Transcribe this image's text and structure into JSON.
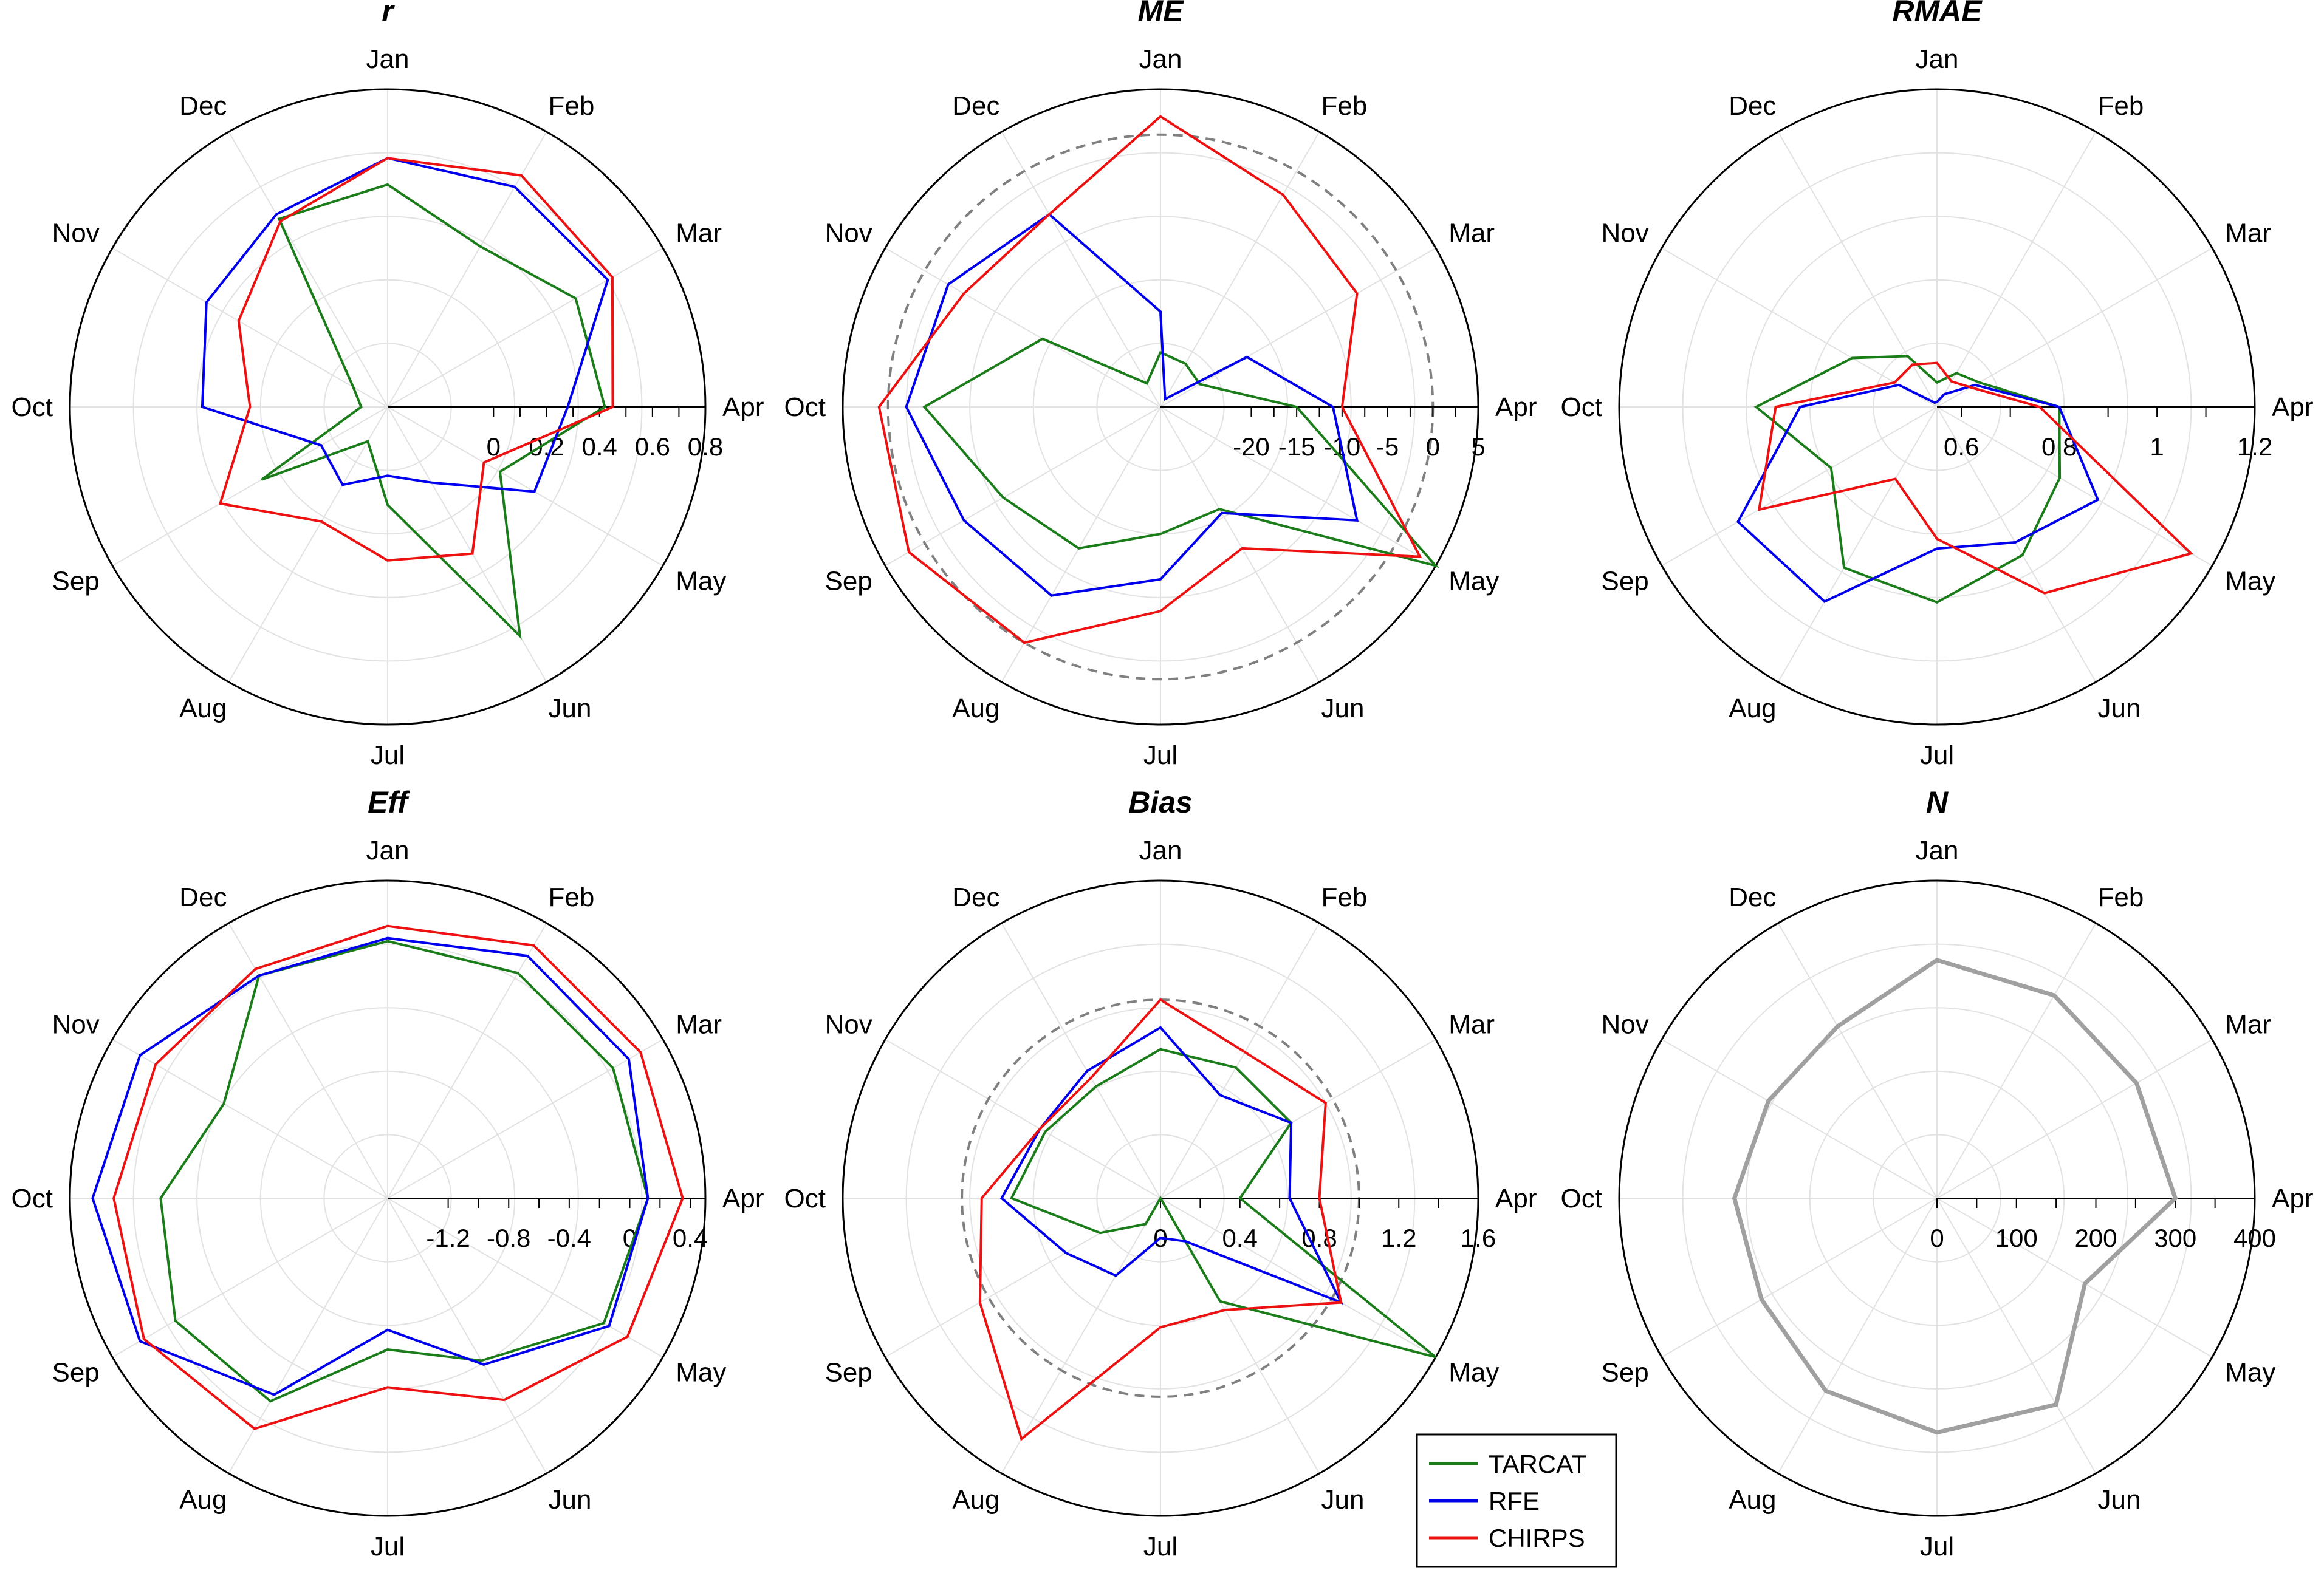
{
  "months": [
    "Jan",
    "Feb",
    "Mar",
    "Apr",
    "May",
    "Jun",
    "Jul",
    "Aug",
    "Sep",
    "Oct",
    "Nov",
    "Dec"
  ],
  "colors": {
    "TARCAT": "#1a7d1a",
    "RFE": "#0000ee",
    "CHIRPS": "#ee1111",
    "N": "#a0a0a0",
    "ref": "#808080"
  },
  "chart_data": [
    {
      "type": "radar",
      "title": "r",
      "rlim": [
        -0.4,
        0.8
      ],
      "ticks": [
        0,
        0.2,
        0.4,
        0.6,
        0.8
      ],
      "tick_labels": [
        "0",
        "0.2",
        "0.4",
        "0.6",
        "0.8"
      ],
      "series": [
        {
          "name": "TARCAT",
          "values": [
            0.44,
            0.3,
            0.42,
            0.42,
            0.09,
            0.6,
            -0.03,
            -0.25,
            0.15,
            -0.3,
            -0.25,
            0.42
          ]
        },
        {
          "name": "RFE",
          "values": [
            0.54,
            0.56,
            0.56,
            0.28,
            0.24,
            -0.07,
            -0.14,
            -0.06,
            -0.11,
            0.3,
            0.39,
            0.44
          ]
        },
        {
          "name": "CHIRPS",
          "values": [
            0.54,
            0.61,
            0.58,
            0.45,
            0.02,
            0.24,
            0.18,
            0.1,
            0.33,
            0.12,
            0.25,
            0.41
          ]
        }
      ]
    },
    {
      "type": "radar",
      "title": "ME",
      "rlim": [
        -30,
        5
      ],
      "ticks": [
        -20,
        -15,
        -10,
        -5,
        0,
        5
      ],
      "tick_labels": [
        "-20",
        "-15",
        "-10",
        "-5",
        "0",
        "5"
      ],
      "reference": 0,
      "series": [
        {
          "name": "TARCAT",
          "values": [
            -24.0,
            -24.5,
            -25.0,
            -15.0,
            5.0,
            -17.0,
            -16.0,
            -12.0,
            -10.0,
            -4.0,
            -15.0,
            -27.0
          ]
        },
        {
          "name": "RFE",
          "values": [
            -19.5,
            -29.0,
            -19.0,
            -11.0,
            -5.0,
            -16.5,
            -11.0,
            -6.0,
            -5.0,
            -2.0,
            -3.0,
            -5.5
          ]
        },
        {
          "name": "CHIRPS",
          "values": [
            2.0,
            -3.0,
            -5.0,
            -10.0,
            3.0,
            -12.0,
            -7.5,
            0.0,
            2.0,
            1.0,
            -5.0,
            -5.5
          ]
        }
      ]
    },
    {
      "type": "radar",
      "title": "RMAE",
      "rlim": [
        0.55,
        1.2
      ],
      "ticks": [
        0.6,
        0.8,
        1.0,
        1.2
      ],
      "tick_labels": [
        "0.6",
        "0.8",
        "1",
        "1.2"
      ],
      "series": [
        {
          "name": "TARCAT",
          "values": [
            0.6,
            0.63,
            0.65,
            0.8,
            0.84,
            0.9,
            0.95,
            0.93,
            0.8,
            0.92,
            0.75,
            0.67
          ]
        },
        {
          "name": "RFE",
          "values": [
            0.56,
            0.58,
            0.64,
            0.8,
            0.93,
            0.87,
            0.84,
            1.01,
            1.02,
            0.83,
            0.64,
            0.56
          ]
        },
        {
          "name": "CHIRPS",
          "values": [
            0.64,
            0.61,
            0.63,
            0.76,
            1.15,
            0.99,
            0.82,
            0.72,
            0.97,
            0.88,
            0.65,
            0.65
          ]
        }
      ]
    },
    {
      "type": "radar",
      "title": "Eff",
      "rlim": [
        -1.6,
        0.5
      ],
      "ticks": [
        -1.2,
        -0.8,
        -0.4,
        0,
        0.4
      ],
      "tick_labels": [
        "-1.2",
        "-0.8",
        "-0.4",
        "0",
        "0.4"
      ],
      "series": [
        {
          "name": "TARCAT",
          "values": [
            0.1,
            0.12,
            0.12,
            0.12,
            0.05,
            -0.36,
            -0.6,
            -0.05,
            0.02,
            -0.1,
            -0.35,
            0.1
          ]
        },
        {
          "name": "RFE",
          "values": [
            0.12,
            0.25,
            0.24,
            0.12,
            0.09,
            -0.33,
            -0.73,
            -0.1,
            0.29,
            0.35,
            0.29,
            0.1
          ]
        },
        {
          "name": "CHIRPS",
          "values": [
            0.2,
            0.33,
            0.33,
            0.35,
            0.23,
            -0.06,
            -0.35,
            0.16,
            0.26,
            0.21,
            0.17,
            0.15
          ]
        }
      ]
    },
    {
      "type": "radar",
      "title": "Bias",
      "rlim": [
        0,
        1.6
      ],
      "ticks": [
        0,
        0.4,
        0.8,
        1.2,
        1.6
      ],
      "tick_labels": [
        "0",
        "0.4",
        "0.8",
        "1.2",
        "1.6"
      ],
      "reference": 1.0,
      "series": [
        {
          "name": "TARCAT",
          "values": [
            0.75,
            0.76,
            0.76,
            0.4,
            1.6,
            0.6,
            0.0,
            0.15,
            0.35,
            0.75,
            0.67,
            0.65
          ]
        },
        {
          "name": "RFE",
          "values": [
            0.86,
            0.6,
            0.76,
            0.65,
            1.05,
            0.25,
            0.2,
            0.45,
            0.55,
            0.8,
            0.7,
            0.74
          ]
        },
        {
          "name": "CHIRPS",
          "values": [
            1.0,
            0.85,
            0.96,
            0.8,
            1.05,
            0.65,
            0.65,
            1.4,
            1.05,
            0.9,
            0.7,
            0.7
          ]
        }
      ]
    },
    {
      "type": "radar",
      "title": "N",
      "rlim": [
        0,
        400
      ],
      "ticks": [
        0,
        100,
        200,
        300,
        400
      ],
      "tick_labels": [
        "0",
        "100",
        "200",
        "300",
        "400"
      ],
      "series": [
        {
          "name": "N",
          "values": [
            300,
            295,
            290,
            300,
            215,
            300,
            295,
            280,
            255,
            255,
            245,
            250
          ]
        }
      ]
    }
  ],
  "legend": {
    "items": [
      "TARCAT",
      "RFE",
      "CHIRPS"
    ]
  }
}
